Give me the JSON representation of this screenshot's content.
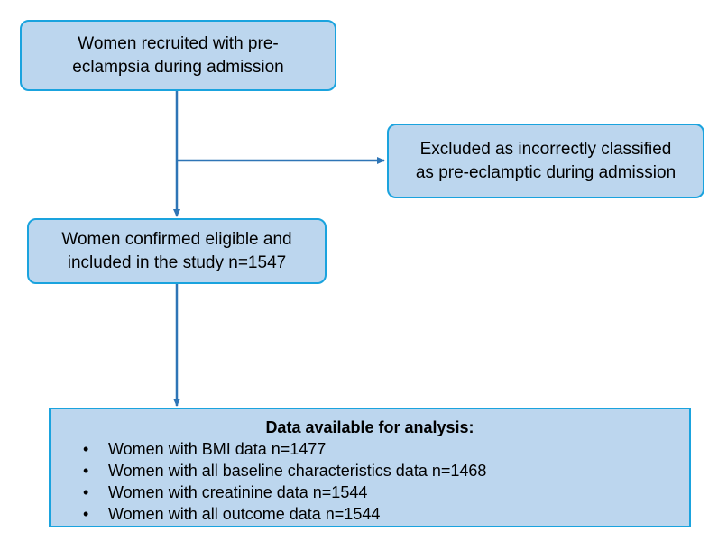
{
  "recruited": {
    "line1": "Women recruited with pre-",
    "line2": "eclampsia during admission"
  },
  "excluded": {
    "line1": "Excluded as incorrectly classified",
    "line2": "as pre-eclamptic during admission"
  },
  "eligible": {
    "line1": "Women confirmed eligible and",
    "line2": "included in the study n=1547"
  },
  "analysis": {
    "header": "Data available for analysis:",
    "items": [
      "Women with BMI data n=1477",
      "Women with all baseline characteristics data n=1468",
      "Women with creatinine data n=1544",
      "Women with all outcome data n=1544"
    ]
  },
  "colors": {
    "box_fill": "#bcd6ee",
    "box_border": "#1aa3de",
    "arrow": "#2e75b6"
  }
}
